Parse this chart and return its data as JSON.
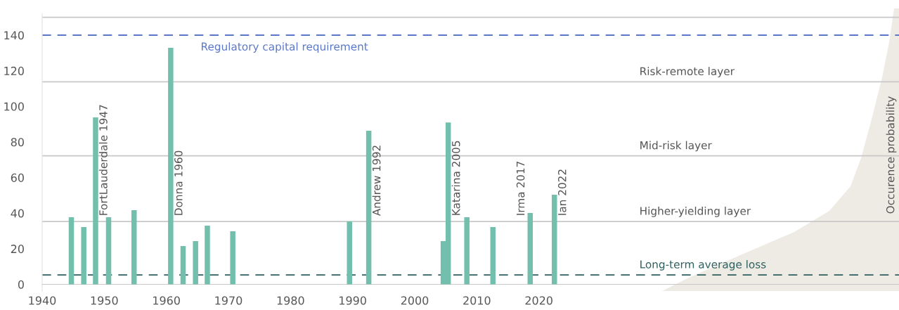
{
  "chart_data": {
    "type": "bar",
    "x": [
      1944.7,
      1946.7,
      1948.6,
      1950.7,
      1954.8,
      1960.7,
      1962.7,
      1964.7,
      1966.6,
      1970.7,
      1989.5,
      1992.6,
      2004.6,
      2005.4,
      2008.4,
      2012.6,
      2018.6,
      2022.5
    ],
    "series": [
      {
        "color": "#72bfae",
        "values": [
          37.7,
          32.2,
          93.8,
          37.7,
          41.7,
          132.9,
          21.5,
          24.3,
          33.0,
          29.8,
          35.3,
          86.3,
          24.3,
          90.9,
          37.7,
          32.2,
          40.1,
          50.4
        ],
        "value_labels": [
          null,
          null,
          "FortLauderdale 1947",
          null,
          null,
          "Donna 1960",
          null,
          null,
          null,
          null,
          null,
          "Andrew 1992",
          null,
          "Katarina 2005",
          null,
          null,
          "Irma 2017",
          "Ian 2022"
        ]
      }
    ],
    "xlim": [
      1940,
      2078
    ],
    "xticks": [
      1940,
      1950,
      1960,
      1970,
      1980,
      1990,
      2000,
      2010,
      2020
    ],
    "ylim": [
      -4,
      152
    ],
    "yticks": [
      0,
      20,
      40,
      60,
      80,
      100,
      120,
      140
    ],
    "ref_lines": [
      {
        "axis": "y",
        "value": 150,
        "color": "#c8c8c8",
        "line_style": "solid"
      },
      {
        "axis": "y",
        "value": 113.8,
        "label": "Risk-remote layer",
        "color": "#c8c8c8",
        "line_style": "solid"
      },
      {
        "axis": "y",
        "value": 72.2,
        "label": "Mid-risk layer",
        "color": "#c8c8c8",
        "line_style": "solid"
      },
      {
        "axis": "y",
        "value": 35.3,
        "label": "Higher-yielding layer",
        "color": "#c8c8c8",
        "line_style": "solid"
      },
      {
        "axis": "y",
        "value": 140,
        "label": "Regulatory capital requirement",
        "color": "#5b78c8",
        "line_style": "dashed"
      },
      {
        "axis": "y",
        "value": 5.3,
        "label": "Long-term average loss",
        "color": "#2e5e5e",
        "line_style": "dashed"
      }
    ],
    "annotations": [
      "Occurence probability"
    ],
    "grid": false,
    "legend": false
  }
}
